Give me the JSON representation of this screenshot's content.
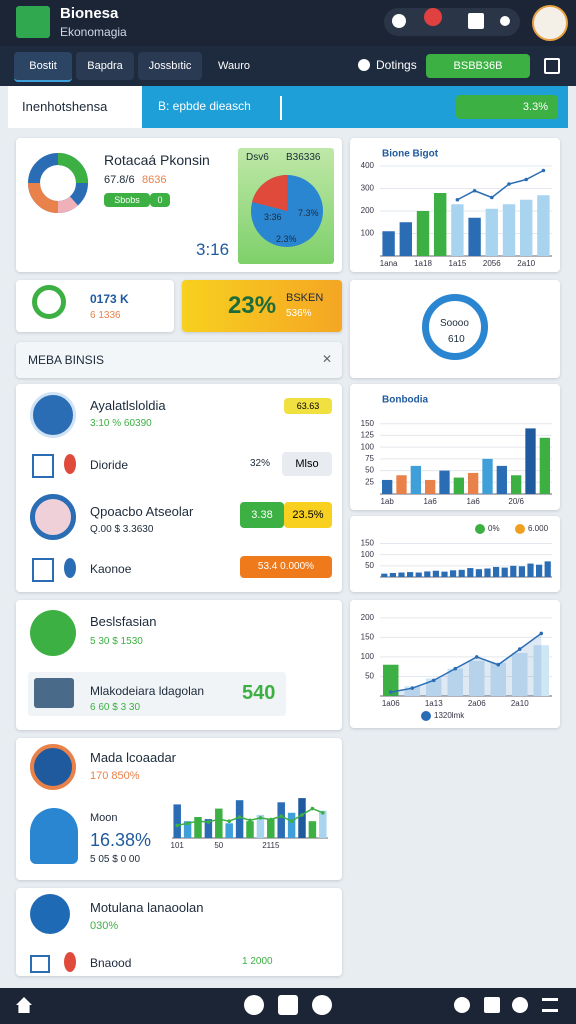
{
  "header": {
    "title": "Bionesa",
    "subtitle": "Ekonomagia"
  },
  "tabs": [
    "Bostit",
    "Bapdra",
    "Jossbıtic",
    "Wauro"
  ],
  "toolbar": {
    "settings": "Dotings",
    "action": "BSBB36B"
  },
  "filters": {
    "select": "Inenhotshensa",
    "search": "B: epbde dieasch",
    "badge": "3.3%"
  },
  "overview": {
    "title": "Rotacaá Pkonsin",
    "meta": "67.8/6",
    "meta_value": "8636",
    "pill": "Sbobs",
    "pill_value": "0",
    "total": "3:16",
    "pie_head": [
      "Dsv6",
      "B36336"
    ],
    "pie_labels": [
      "3:36",
      "7.3%",
      "2.3%"
    ]
  },
  "stat": {
    "title": "0173 K",
    "sub": "6 1336"
  },
  "highlight": {
    "value": "23%",
    "title": "BSKEN",
    "sub": "536%"
  },
  "ring": {
    "title": "Soooo",
    "value": "610"
  },
  "section": {
    "title": "MEBA BINSIS"
  },
  "list": {
    "a_title": "Ayalatlsloldia",
    "a_meta": "3:10 % 60390",
    "a_badge": "63.63",
    "b_title": "Dioride",
    "b_value": "32%",
    "b_button": "Mlso",
    "c_title": "Qpoacbo Atseolar",
    "c_meta": "Q.00 $ 3.3630",
    "c_badge_a": "3.38",
    "c_badge_b": "23.5%",
    "d_title": "Kaonoe",
    "d_button": "53.4 0.000%"
  },
  "business": {
    "title": "Beslsfasian",
    "meta": "5 30 $ 1530",
    "row_title": "Mlakodeiara ldagolan",
    "row_meta": "6 60 $ 3 30",
    "row_value": "540"
  },
  "media": {
    "title": "Mada lcoaadar",
    "meta": "170 850%",
    "sub_title": "Moon",
    "sub_value": "16.38%",
    "sub_meta": "5 05 $ 0 00"
  },
  "footer_card": {
    "title": "Motulana lanaoolan",
    "meta": "030%",
    "row": "Bnaood",
    "row_value": "1 2000"
  },
  "charts": [
    {
      "type": "bar",
      "title": "Bione Bigot",
      "categories": [
        "1ana",
        null,
        "1a18",
        null,
        "1a15",
        null,
        "2056",
        null,
        "2a10",
        null
      ],
      "ylim": [
        0,
        400
      ],
      "yticks": [
        100,
        200,
        300,
        400
      ],
      "grid": true,
      "series": [
        {
          "type": "bar",
          "colors": [
            "#2a6db5",
            "#2a6db5",
            "#3cb043",
            "#3cb043",
            "#a9d4ef",
            "#2a6db5",
            "#a9d4ef",
            "#a9d4ef",
            "#a9d4ef",
            "#a9d4ef"
          ],
          "values": [
            110,
            150,
            200,
            280,
            230,
            170,
            210,
            230,
            250,
            270
          ]
        },
        {
          "type": "line",
          "color": "#2a6db5",
          "values": [
            null,
            null,
            null,
            null,
            250,
            290,
            260,
            320,
            340,
            380
          ]
        }
      ]
    },
    {
      "type": "bar",
      "title": "Bonbodia",
      "categories": [
        "1ab",
        null,
        null,
        "1a6",
        null,
        null,
        "1a6",
        null,
        null,
        "20/6",
        null,
        null
      ],
      "ylim": [
        0,
        175
      ],
      "yticks": [
        25,
        50,
        75,
        100,
        125,
        150
      ],
      "grid": true,
      "series": [
        {
          "type": "bar",
          "colors": [
            "#2a6db5",
            "#e8824a",
            "#3f9fd8",
            "#e8824a",
            "#2a6db5",
            "#3cb043",
            "#e8824a",
            "#3f9fd8",
            "#2a6db5",
            "#3cb043",
            "#1f5a9e",
            "#3cb043"
          ],
          "values": [
            30,
            40,
            60,
            30,
            50,
            35,
            45,
            75,
            60,
            40,
            140,
            120
          ]
        }
      ]
    },
    {
      "type": "bar",
      "categories": [
        null,
        null,
        null,
        null,
        null,
        null,
        null,
        null,
        null,
        null,
        null,
        null,
        null,
        null,
        null,
        null,
        null,
        null,
        null,
        null
      ],
      "ylim": [
        0,
        170
      ],
      "yticks": [
        50,
        100,
        150
      ],
      "grid": true,
      "legend_position": "top-right",
      "legend": [
        {
          "label": "0%",
          "color": "#3cb043"
        },
        {
          "label": "6.000",
          "color": "#f0a020"
        }
      ],
      "series": [
        {
          "type": "bar",
          "color": "#2a6db5",
          "values": [
            15,
            18,
            20,
            22,
            20,
            25,
            28,
            24,
            30,
            32,
            40,
            35,
            38,
            45,
            42,
            50,
            48,
            60,
            55,
            70
          ]
        }
      ]
    },
    {
      "type": "line",
      "categories": [
        "1a06",
        null,
        "1a13",
        null,
        "2a06",
        null,
        "2a10",
        null
      ],
      "ylim": [
        0,
        220
      ],
      "yticks": [
        50,
        100,
        150,
        200
      ],
      "grid": true,
      "legend_position": "bottom",
      "legend": [
        {
          "label": "1320lmk",
          "color": "#2a6db5"
        }
      ],
      "series": [
        {
          "type": "bar",
          "colors": [
            "#3cb043",
            "#cfe6f5",
            "#cfe6f5",
            "#cfe6f5",
            "#cfe6f5",
            "#cfe6f5",
            "#cfe6f5",
            "#cfe6f5"
          ],
          "values": [
            80,
            25,
            45,
            70,
            90,
            85,
            110,
            130
          ]
        },
        {
          "type": "line",
          "color": "#2a6db5",
          "area": true,
          "values": [
            10,
            20,
            40,
            70,
            100,
            80,
            120,
            160
          ]
        }
      ]
    },
    {
      "type": "bar",
      "categories": [
        "101",
        null,
        null,
        null,
        "50",
        null,
        null,
        null,
        null,
        "2115",
        null,
        null,
        null,
        null,
        null
      ],
      "ylim": [
        0,
        100
      ],
      "series": [
        {
          "type": "bar",
          "colors": [
            "#2a6db5",
            "#3f9fd8",
            "#3cb043",
            "#2a6db5",
            "#3cb043",
            "#3f9fd8",
            "#2a6db5",
            "#3cb043",
            "#a9d4ef",
            "#3cb043",
            "#2a6db5",
            "#3f9fd8",
            "#1f5a9e",
            "#3cb043",
            "#a9d4ef"
          ],
          "values": [
            80,
            40,
            50,
            45,
            70,
            35,
            90,
            40,
            55,
            45,
            85,
            60,
            95,
            40,
            65
          ]
        },
        {
          "type": "line",
          "color": "#3cb043",
          "values": [
            30,
            35,
            40,
            38,
            45,
            40,
            50,
            42,
            48,
            44,
            52,
            40,
            55,
            70,
            60
          ]
        }
      ]
    }
  ]
}
